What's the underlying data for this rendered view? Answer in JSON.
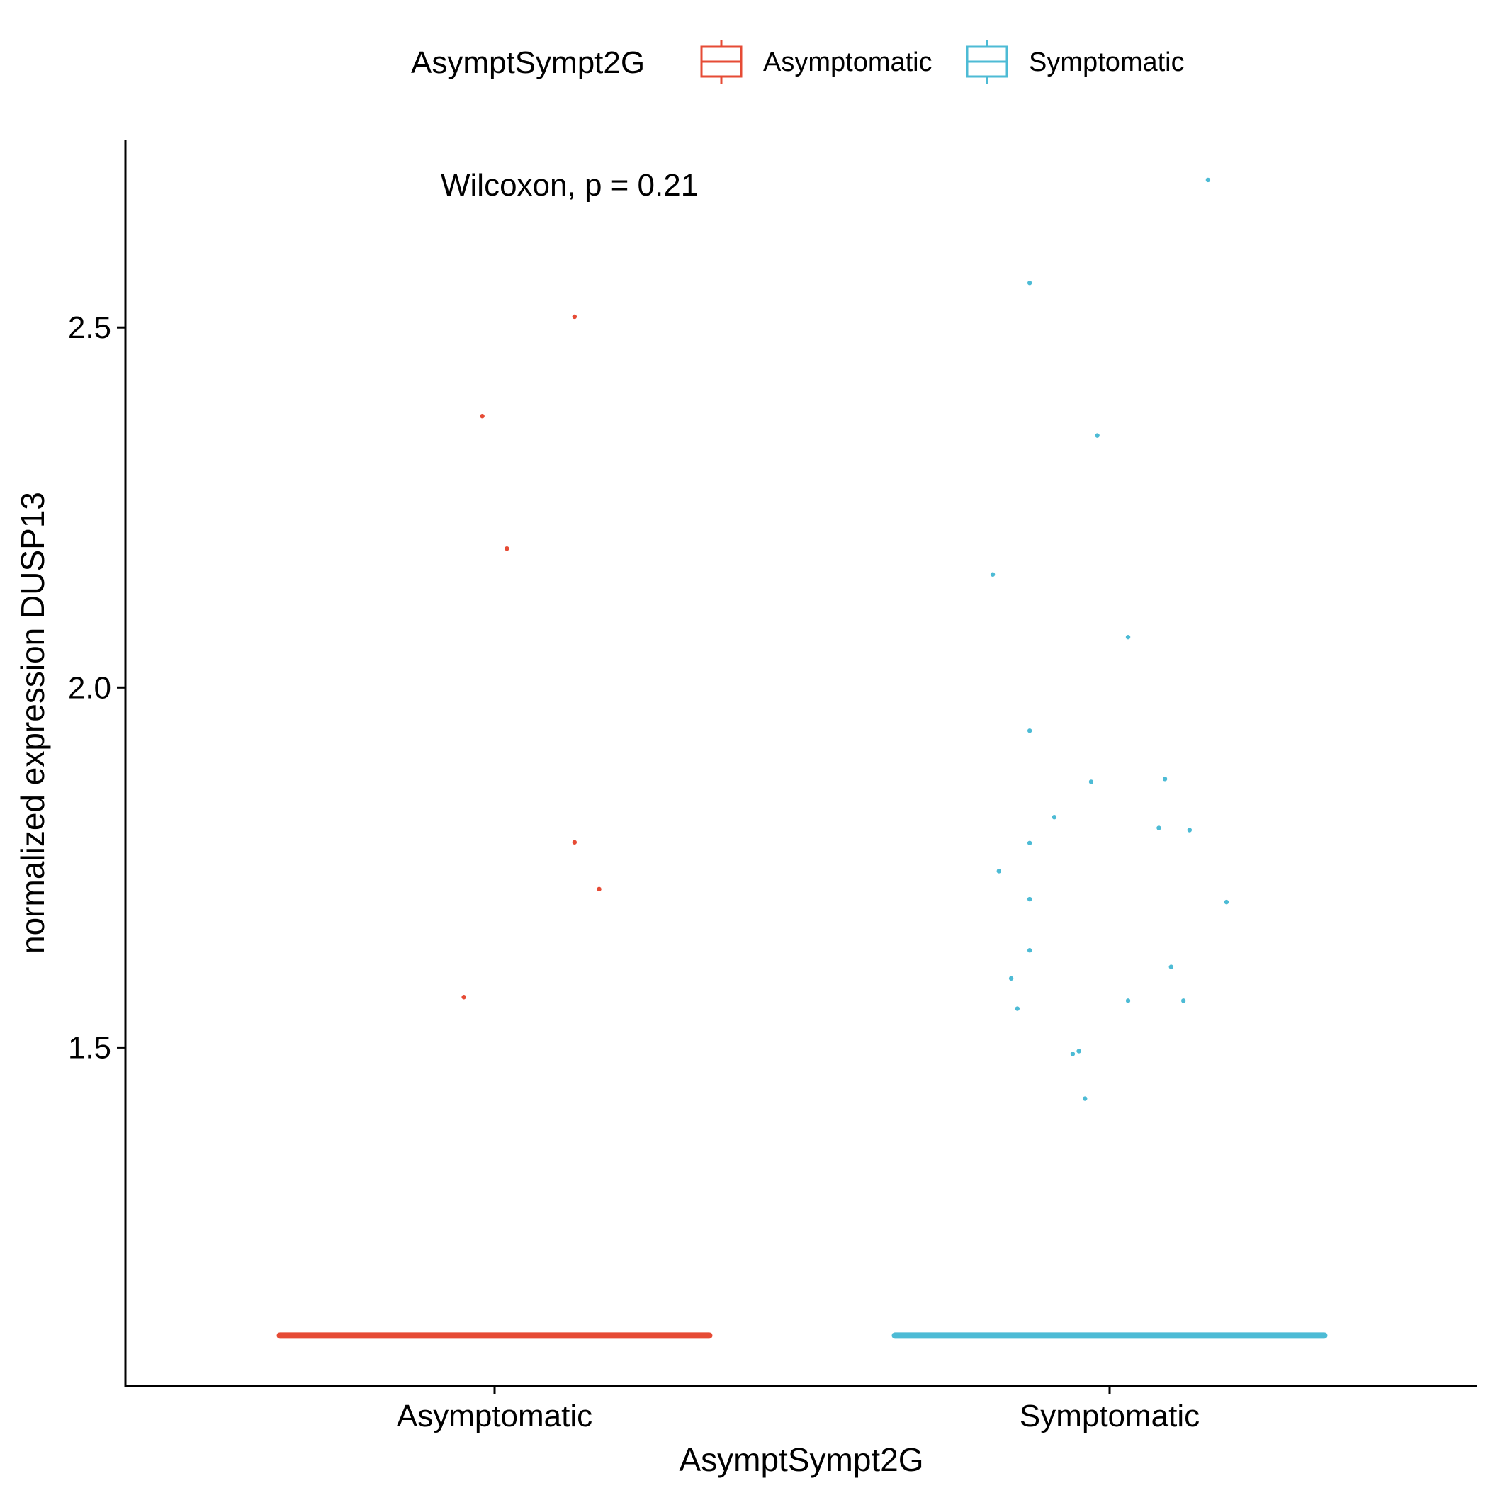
{
  "chart_data": {
    "type": "box",
    "xlabel": "AsymptSympt2G",
    "ylabel": "normalized expression DUSP13",
    "categories": [
      "Asymptomatic",
      "Symptomatic"
    ],
    "ylim": [
      1.03,
      2.76
    ],
    "yticks": [
      1.5,
      2.0,
      2.5
    ],
    "ytick_labels": [
      "1.5",
      "2.0",
      "2.5"
    ],
    "grid": false,
    "legend": {
      "title": "AsymptSympt2G",
      "position": "top",
      "entries": [
        {
          "label": "Asymptomatic",
          "color": "#E64B35"
        },
        {
          "label": "Symptomatic",
          "color": "#4DBBD5"
        }
      ]
    },
    "annotation": "Wilcoxon, p = 0.21",
    "series": [
      {
        "name": "Asymptomatic",
        "color": "#E64B35",
        "box_value": 1.1,
        "points": [
          {
            "x": 0.13,
            "y": 2.515
          },
          {
            "x": -0.02,
            "y": 2.377
          },
          {
            "x": 0.02,
            "y": 2.193
          },
          {
            "x": 0.13,
            "y": 1.785
          },
          {
            "x": 0.17,
            "y": 1.72
          },
          {
            "x": -0.05,
            "y": 1.57
          }
        ]
      },
      {
        "name": "Symptomatic",
        "color": "#4DBBD5",
        "box_value": 1.1,
        "points": [
          {
            "x": 0.16,
            "y": 2.705
          },
          {
            "x": -0.13,
            "y": 2.562
          },
          {
            "x": -0.02,
            "y": 2.35
          },
          {
            "x": -0.19,
            "y": 2.157
          },
          {
            "x": 0.03,
            "y": 2.07
          },
          {
            "x": -0.13,
            "y": 1.94
          },
          {
            "x": 0.09,
            "y": 1.873
          },
          {
            "x": -0.03,
            "y": 1.869
          },
          {
            "x": -0.09,
            "y": 1.82
          },
          {
            "x": 0.08,
            "y": 1.805
          },
          {
            "x": 0.13,
            "y": 1.802
          },
          {
            "x": -0.13,
            "y": 1.784
          },
          {
            "x": -0.18,
            "y": 1.745
          },
          {
            "x": -0.13,
            "y": 1.706
          },
          {
            "x": 0.19,
            "y": 1.702
          },
          {
            "x": -0.13,
            "y": 1.635
          },
          {
            "x": 0.1,
            "y": 1.612
          },
          {
            "x": -0.16,
            "y": 1.596
          },
          {
            "x": 0.03,
            "y": 1.565
          },
          {
            "x": 0.12,
            "y": 1.565
          },
          {
            "x": -0.15,
            "y": 1.554
          },
          {
            "x": -0.05,
            "y": 1.495
          },
          {
            "x": -0.06,
            "y": 1.491
          },
          {
            "x": -0.04,
            "y": 1.429
          }
        ]
      }
    ]
  }
}
